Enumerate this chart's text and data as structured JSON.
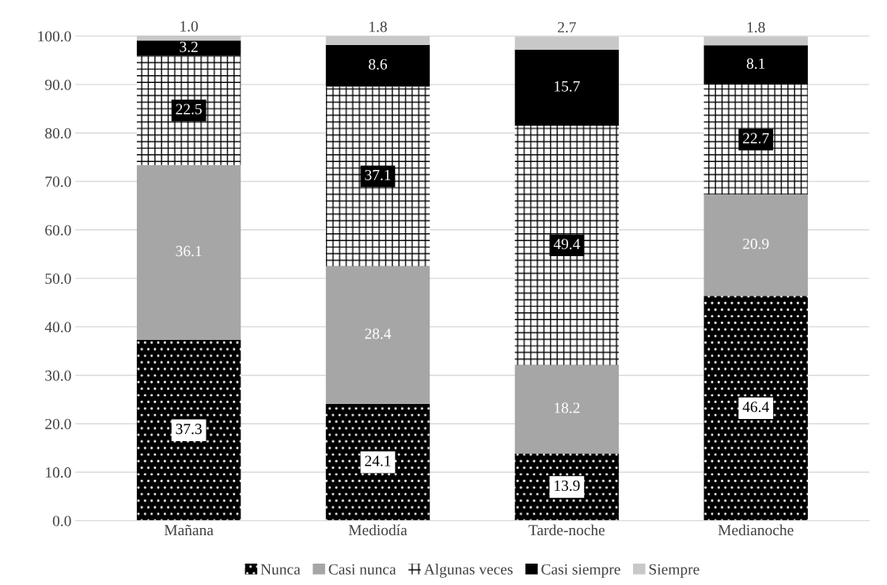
{
  "chart_data": {
    "type": "bar",
    "stacked": true,
    "categories": [
      "Mañana",
      "Mediodía",
      "Tarde-noche",
      "Medianoche"
    ],
    "series": [
      {
        "name": "Nunca",
        "color": "#000000",
        "values": [
          37.3,
          24.1,
          13.9,
          46.4
        ]
      },
      {
        "name": "Casi nunca",
        "color": "#a6a6a6",
        "values": [
          36.1,
          28.4,
          18.2,
          20.9
        ]
      },
      {
        "name": "Algunas veces",
        "color": "#ffffff",
        "values": [
          22.5,
          37.1,
          49.4,
          22.7
        ]
      },
      {
        "name": "Casi siempre",
        "color": "#000000",
        "values": [
          3.2,
          8.6,
          15.7,
          8.1
        ]
      },
      {
        "name": "Siempre",
        "color": "#c8c8c8",
        "values": [
          1.0,
          1.8,
          2.7,
          1.8
        ],
        "value_labels": [
          "1.0",
          "1.8",
          "2.7",
          "1.8"
        ]
      }
    ],
    "ylim": [
      0,
      100.2
    ],
    "yticks": [
      {
        "value": 0,
        "label": "0.0"
      },
      {
        "value": 10,
        "label": "10.0"
      },
      {
        "value": 20,
        "label": "20.0"
      },
      {
        "value": 30,
        "label": "30.0"
      },
      {
        "value": 40,
        "label": "40.0"
      },
      {
        "value": 50,
        "label": "50.0"
      },
      {
        "value": 60,
        "label": "60.0"
      },
      {
        "value": 70,
        "label": "70.0"
      },
      {
        "value": 80,
        "label": "80.0"
      },
      {
        "value": 90,
        "label": "90.0"
      },
      {
        "value": 100,
        "label": "100.0"
      }
    ],
    "grid": "y",
    "legend": "bottom",
    "data_labels": true
  }
}
